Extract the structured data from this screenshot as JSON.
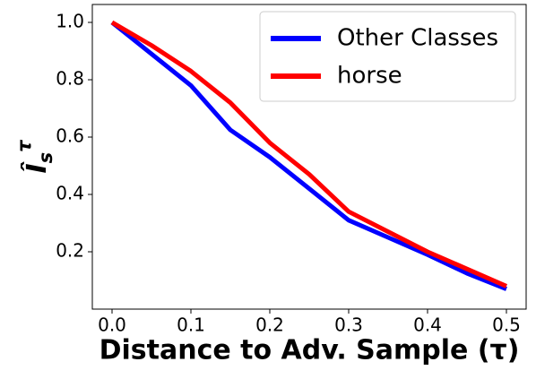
{
  "chart_data": {
    "type": "line",
    "xlabel": "Distance to Adv. Sample (τ)",
    "ylabel": {
      "base": "Î",
      "sub": "s",
      "sup": "τ"
    },
    "x": [
      0,
      0.05,
      0.1,
      0.15,
      0.2,
      0.25,
      0.3,
      0.35,
      0.4,
      0.45,
      0.5
    ],
    "series": [
      {
        "name": "Other Classes",
        "color": "#0000ff",
        "values": [
          1.0,
          0.89,
          0.78,
          0.625,
          0.53,
          0.42,
          0.31,
          0.25,
          0.19,
          0.125,
          0.07
        ]
      },
      {
        "name": "horse",
        "color": "#ff0000",
        "values": [
          1.0,
          0.92,
          0.83,
          0.72,
          0.58,
          0.47,
          0.34,
          0.27,
          0.2,
          0.14,
          0.08
        ]
      }
    ],
    "xlim": [
      -0.025,
      0.525
    ],
    "ylim": [
      0,
      1.0625
    ],
    "xticks": [
      {
        "value": 0,
        "label": "0.0"
      },
      0.1,
      0.2,
      0.3,
      0.4,
      0.5
    ],
    "yticks": [
      0.2,
      0.4,
      0.6,
      0.8,
      {
        "value": 1,
        "label": "1.0"
      }
    ],
    "legend": "upper right"
  }
}
